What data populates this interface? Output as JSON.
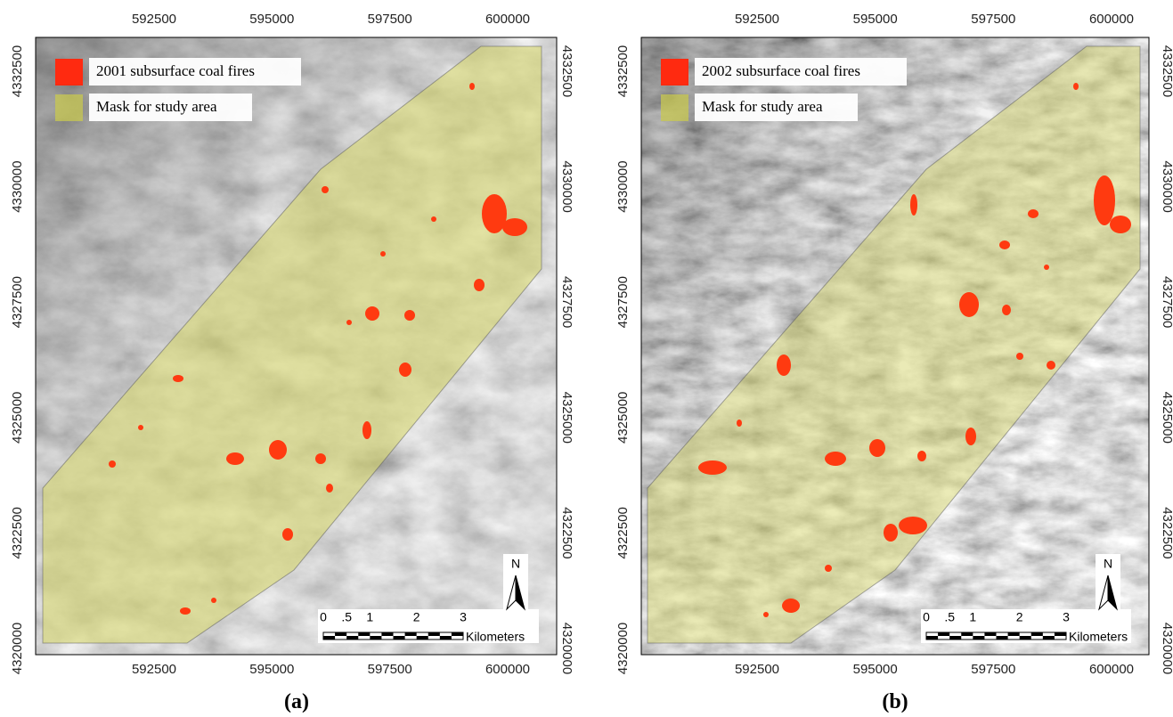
{
  "panels": [
    {
      "label": "(a)",
      "legend": [
        "2001 subsurface coal fires",
        "Mask for study area"
      ],
      "x_ticks": [
        592500,
        595000,
        597500,
        600000
      ],
      "y_ticks": [
        4332500,
        4330000,
        4327500,
        4325000,
        4322500,
        4320000
      ],
      "scale_bar": {
        "ticks": [
          0,
          {
            "value": 0.5,
            "label": ".5"
          },
          1,
          2,
          3
        ],
        "unit": "Kilometers"
      },
      "north": "N"
    },
    {
      "label": "(b)",
      "legend": [
        "2002 subsurface coal fires",
        "Mask for study area"
      ],
      "x_ticks": [
        592500,
        595000,
        597500,
        600000
      ],
      "y_ticks": [
        4332500,
        4330000,
        4327500,
        4325000,
        4322500,
        4320000
      ],
      "scale_bar": {
        "ticks": [
          0,
          {
            "value": 0.5,
            "label": ".5"
          },
          1,
          2,
          3
        ],
        "unit": "Kilometers"
      },
      "north": "N"
    }
  ]
}
